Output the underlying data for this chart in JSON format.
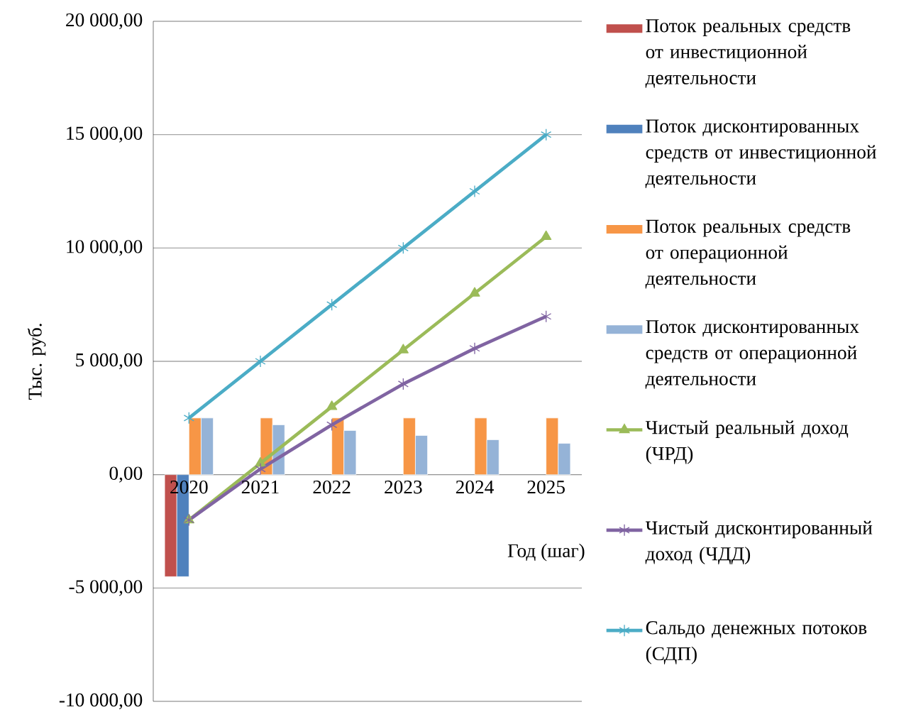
{
  "chart_data": {
    "type": "bar",
    "xlabel": "Год (шаг)",
    "ylabel": "Тыс. руб.",
    "categories": [
      "2020",
      "2021",
      "2022",
      "2023",
      "2024",
      "2025"
    ],
    "series": [
      {
        "name": "Поток реальных средств от инвестиционной деятельности",
        "color": "#c0504d",
        "values": [
          -4500,
          null,
          null,
          null,
          null,
          null
        ]
      },
      {
        "name": "Поток дисконтированных средств от инвестиционной деятельности",
        "color": "#4f81bd",
        "values": [
          -4500,
          null,
          null,
          null,
          null,
          null
        ]
      },
      {
        "name": "Поток реальных средств от операционной деятельности",
        "color": "#f79646",
        "values": [
          2500,
          2500,
          2500,
          2500,
          2500,
          2500
        ]
      },
      {
        "name": "Поток дисконтированных средств от операционной деятельности",
        "color": "#95b3d7",
        "values": [
          2500,
          2200,
          1950,
          1730,
          1540,
          1380
        ]
      },
      {
        "name": "Чистый реальный доход (ЧРД)",
        "type": "line",
        "color": "#9bbb59",
        "marker": "triangle",
        "values": [
          -2000,
          500,
          3000,
          5500,
          8000,
          10500
        ]
      },
      {
        "name": "Чистый дисконтированный доход (ЧДД)",
        "type": "line",
        "color": "#8064a2",
        "marker": "cross",
        "values": [
          -2000,
          250,
          2200,
          4000,
          5570,
          6980
        ]
      },
      {
        "name": "Сальдо денежных потоков (СДП)",
        "type": "line",
        "color": "#4bacc6",
        "marker": "cross",
        "values": [
          2500,
          5000,
          7500,
          10000,
          12500,
          15000
        ]
      }
    ],
    "ylim": [
      -10000,
      20000
    ],
    "yticks": [
      {
        "value": -10000,
        "label": "-10 000,00"
      },
      {
        "value": -5000,
        "label": "-5 000,00"
      },
      {
        "value": 0,
        "label": "0,00"
      },
      {
        "value": 5000,
        "label": "5 000,00"
      },
      {
        "value": 10000,
        "label": "10 000,00"
      },
      {
        "value": 15000,
        "label": "15 000,00"
      },
      {
        "value": 20000,
        "label": "20 000,00"
      }
    ],
    "grid": "y",
    "legend": "right",
    "line_style": "solid"
  }
}
